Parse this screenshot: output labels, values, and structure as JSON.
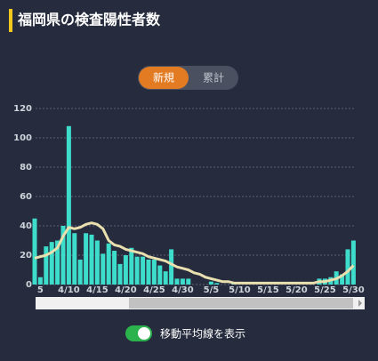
{
  "title": "福岡県の検査陽性者数",
  "buttons": [
    "新規",
    "累計"
  ],
  "toggle_label": "移動平均線を表示",
  "chart_data": {
    "type": "bar",
    "categories": [
      null,
      "5",
      null,
      null,
      null,
      null,
      "4/10",
      null,
      null,
      null,
      null,
      "4/15",
      null,
      null,
      null,
      null,
      "4/20",
      null,
      null,
      null,
      null,
      "4/25",
      null,
      null,
      null,
      null,
      "4/30",
      null,
      null,
      null,
      null,
      "5/5",
      null,
      null,
      null,
      null,
      "5/10",
      null,
      null,
      null,
      null,
      "5/15",
      null,
      null,
      null,
      null,
      "5/20",
      null,
      null,
      null,
      null,
      "5/25",
      null,
      null,
      null,
      null,
      "5/30"
    ],
    "series": [
      {
        "color": "#3ddccb",
        "values": [
          45,
          5,
          26,
          29,
          30,
          40,
          108,
          35,
          17,
          35,
          34,
          30,
          21,
          28,
          23,
          14,
          20,
          25,
          19,
          19,
          17,
          17,
          13,
          9,
          24,
          4,
          4,
          4,
          0,
          0,
          0,
          2,
          1,
          0,
          0,
          1,
          0,
          0,
          0,
          0,
          0,
          0,
          0,
          0,
          0,
          0,
          0,
          0,
          0,
          0,
          4,
          4,
          5,
          9,
          7,
          24,
          30
        ]
      },
      {
        "type": "line",
        "color": "#eadfae",
        "values": [
          18,
          19,
          20,
          22,
          25,
          33,
          39,
          38,
          39,
          41,
          42,
          41,
          38,
          30,
          27,
          26,
          24,
          23,
          22,
          21,
          19,
          18,
          17,
          16,
          14,
          12,
          11,
          10,
          8,
          7,
          5,
          4,
          3,
          2,
          2,
          1,
          1,
          1,
          1,
          1,
          1,
          1,
          1,
          1,
          1,
          1,
          1,
          1,
          1,
          1,
          2,
          2,
          3,
          4,
          6,
          9,
          13
        ]
      }
    ],
    "ylim": [
      0,
      120
    ],
    "yticks": [
      0,
      20,
      40,
      60,
      80,
      100,
      120
    ],
    "grid": true
  }
}
